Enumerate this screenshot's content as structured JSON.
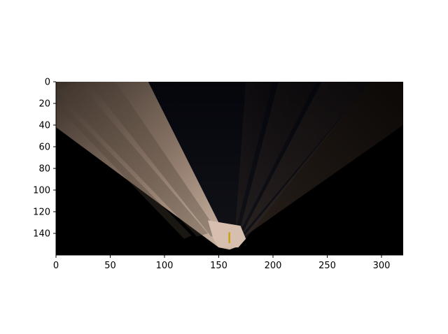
{
  "chart_data": {
    "type": "heatmap",
    "title": "",
    "xlabel": "",
    "ylabel": "",
    "image_width": 320,
    "image_height": 160,
    "xlim": [
      0,
      320
    ],
    "ylim": [
      160,
      0
    ],
    "y_inverted": true,
    "grid": false,
    "x_ticks": [
      0,
      50,
      100,
      150,
      200,
      250,
      300
    ],
    "x_tick_labels": [
      "0",
      "50",
      "100",
      "150",
      "200",
      "250",
      "300"
    ],
    "y_ticks": [
      0,
      20,
      40,
      60,
      80,
      100,
      120,
      140
    ],
    "y_tick_labels": [
      "0",
      "20",
      "40",
      "60",
      "80",
      "100",
      "120",
      "140"
    ],
    "colors": {
      "background": "#000000",
      "floor_light": "#d6bfae",
      "floor_mid": "#9c8576",
      "floor_dark": "#4a3e35",
      "far_wall": "#0b0b14",
      "right_ray": "#2a2018",
      "marker": "#c8a000"
    },
    "marker_icon": "agent-marker"
  }
}
